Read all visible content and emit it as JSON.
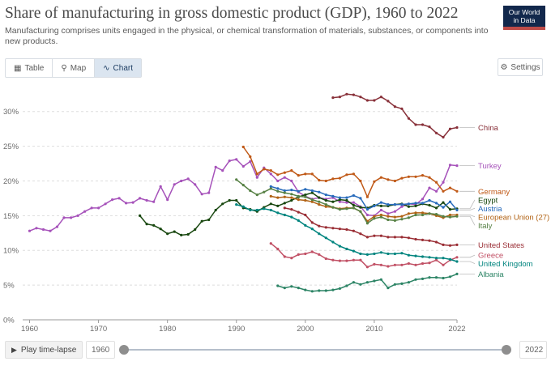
{
  "header": {
    "title": "Share of manufacturing in gross domestic product (GDP), 1960 to 2022",
    "subtitle": "Manufacturing comprises units engaged in the physical, or chemical transformation of materials, substances, or components into new products.",
    "logo_line1": "Our World",
    "logo_line2": "in Data"
  },
  "tabs": [
    {
      "label": "Table",
      "icon": "table-icon"
    },
    {
      "label": "Map",
      "icon": "map-icon"
    },
    {
      "label": "Chart",
      "icon": "chart-icon",
      "active": true
    }
  ],
  "settings_label": "Settings",
  "timeline": {
    "play_label": "Play time-lapse",
    "start_year": "1960",
    "end_year": "2022",
    "start_value": 1960,
    "end_value": 2022
  },
  "chart_data": {
    "type": "line",
    "title": "Share of manufacturing in gross domestic product (GDP), 1960 to 2022",
    "xlim": [
      1959,
      2022
    ],
    "ylim": [
      0,
      33
    ],
    "x_ticks": [
      1960,
      1970,
      1980,
      1990,
      2000,
      2010,
      2022
    ],
    "y_ticks": [
      0,
      5,
      10,
      15,
      20,
      25,
      30
    ],
    "y_tick_labels": [
      "0%",
      "5%",
      "10%",
      "15%",
      "20%",
      "25%",
      "30%"
    ],
    "grid": "horizontal dashed",
    "series": [
      {
        "name": "China",
        "color": "#883039",
        "x": [
          2004,
          2005,
          2006,
          2007,
          2008,
          2009,
          2010,
          2011,
          2012,
          2013,
          2014,
          2015,
          2016,
          2017,
          2018,
          2019,
          2020,
          2021,
          2022
        ],
        "y": [
          32.0,
          32.1,
          32.5,
          32.4,
          32.1,
          31.6,
          31.6,
          32.1,
          31.5,
          30.7,
          30.4,
          29.0,
          28.1,
          28.1,
          27.8,
          26.9,
          26.3,
          27.5,
          27.7
        ]
      },
      {
        "name": "Turkey",
        "color": "#a652ba",
        "x": [
          1960,
          1961,
          1962,
          1963,
          1964,
          1965,
          1966,
          1967,
          1968,
          1969,
          1970,
          1971,
          1972,
          1973,
          1974,
          1975,
          1976,
          1977,
          1978,
          1979,
          1980,
          1981,
          1982,
          1983,
          1984,
          1985,
          1986,
          1987,
          1988,
          1989,
          1990,
          1991,
          1992,
          1993,
          1994,
          1995,
          1996,
          1997,
          1998,
          1999,
          2000,
          2001,
          2002,
          2003,
          2004,
          2005,
          2006,
          2007,
          2008,
          2009,
          2010,
          2011,
          2012,
          2013,
          2014,
          2015,
          2016,
          2017,
          2018,
          2019,
          2020,
          2021,
          2022
        ],
        "y": [
          12.8,
          13.2,
          13.0,
          12.8,
          13.4,
          14.7,
          14.7,
          15.0,
          15.6,
          16.1,
          16.1,
          16.7,
          17.3,
          17.5,
          16.8,
          16.9,
          17.5,
          17.2,
          17.0,
          19.2,
          17.3,
          19.5,
          20.0,
          20.3,
          19.5,
          18.1,
          18.3,
          22.0,
          21.5,
          22.9,
          23.1,
          22.1,
          22.8,
          20.5,
          21.9,
          21.0,
          20.0,
          20.5,
          20.0,
          18.4,
          17.8,
          17.4,
          17.6,
          17.4,
          17.6,
          17.0,
          16.9,
          16.9,
          16.3,
          15.1,
          15.0,
          15.8,
          15.3,
          15.6,
          16.3,
          16.7,
          16.6,
          17.4,
          19.0,
          18.5,
          19.8,
          22.3,
          22.2
        ]
      },
      {
        "name": "Germany",
        "color": "#c05917",
        "x": [
          1991,
          1992,
          1993,
          1994,
          1995,
          1996,
          1997,
          1998,
          1999,
          2000,
          2001,
          2002,
          2003,
          2004,
          2005,
          2006,
          2007,
          2008,
          2009,
          2010,
          2011,
          2012,
          2013,
          2014,
          2015,
          2016,
          2017,
          2018,
          2019,
          2020,
          2021,
          2022
        ],
        "y": [
          24.9,
          23.5,
          21.0,
          21.7,
          21.5,
          20.9,
          21.2,
          21.5,
          20.8,
          21.0,
          21.0,
          20.1,
          20.0,
          20.3,
          20.4,
          20.9,
          21.0,
          20.0,
          17.7,
          19.9,
          20.5,
          20.2,
          20.0,
          20.4,
          20.6,
          20.6,
          20.8,
          20.5,
          19.8,
          18.5,
          19.0,
          18.5
        ]
      },
      {
        "name": "Egypt",
        "color": "#18470f",
        "x": [
          1976,
          1977,
          1978,
          1979,
          1980,
          1981,
          1982,
          1983,
          1984,
          1985,
          1986,
          1987,
          1988,
          1989,
          1990,
          1991,
          1992,
          1993,
          1994,
          1995,
          1996,
          1997,
          1998,
          1999,
          2000,
          2001,
          2002,
          2003,
          2004,
          2005,
          2006,
          2007,
          2008,
          2009,
          2010,
          2011,
          2012,
          2013,
          2014,
          2015,
          2016,
          2017,
          2018,
          2019,
          2020,
          2021,
          2022
        ],
        "y": [
          15.0,
          13.8,
          13.6,
          13.1,
          12.4,
          12.7,
          12.2,
          12.3,
          13.0,
          14.2,
          14.4,
          15.8,
          16.7,
          17.2,
          17.2,
          16.1,
          15.9,
          15.6,
          16.2,
          16.7,
          16.4,
          16.8,
          17.2,
          17.7,
          18.0,
          18.3,
          17.6,
          17.2,
          17.0,
          17.3,
          17.2,
          16.5,
          16.2,
          16.1,
          16.5,
          16.4,
          16.4,
          16.6,
          16.7,
          16.3,
          16.4,
          16.7,
          16.5,
          16.1,
          16.9,
          15.9,
          16.0
        ]
      },
      {
        "name": "Austria",
        "color": "#286bbb",
        "x": [
          1995,
          1996,
          1997,
          1998,
          1999,
          2000,
          2001,
          2002,
          2003,
          2004,
          2005,
          2006,
          2007,
          2008,
          2009,
          2010,
          2011,
          2012,
          2013,
          2014,
          2015,
          2016,
          2017,
          2018,
          2019,
          2020,
          2021,
          2022
        ],
        "y": [
          19.2,
          18.9,
          18.6,
          18.7,
          18.5,
          18.8,
          18.6,
          18.4,
          18.0,
          17.8,
          17.6,
          17.6,
          17.9,
          17.5,
          15.9,
          16.4,
          16.9,
          16.6,
          16.6,
          16.6,
          16.7,
          16.8,
          16.8,
          17.2,
          16.8,
          16.2,
          17.0,
          15.8
        ]
      },
      {
        "name": "European Union (27)",
        "color": "#b16214",
        "x": [
          1995,
          1996,
          1997,
          1998,
          1999,
          2000,
          2001,
          2002,
          2003,
          2004,
          2005,
          2006,
          2007,
          2008,
          2009,
          2010,
          2011,
          2012,
          2013,
          2014,
          2015,
          2016,
          2017,
          2018,
          2019,
          2020,
          2021,
          2022
        ],
        "y": [
          17.8,
          17.6,
          17.7,
          17.6,
          17.3,
          17.2,
          17.0,
          16.6,
          16.3,
          16.2,
          16.0,
          16.1,
          16.1,
          15.6,
          14.2,
          14.9,
          15.1,
          14.9,
          14.8,
          14.9,
          15.3,
          15.4,
          15.4,
          15.3,
          15.0,
          14.7,
          15.1,
          15.1
        ]
      },
      {
        "name": "Italy",
        "color": "#578145",
        "x": [
          1990,
          1991,
          1992,
          1993,
          1994,
          1995,
          1996,
          1997,
          1998,
          1999,
          2000,
          2001,
          2002,
          2003,
          2004,
          2005,
          2006,
          2007,
          2008,
          2009,
          2010,
          2011,
          2012,
          2013,
          2014,
          2015,
          2016,
          2017,
          2018,
          2019,
          2020,
          2021,
          2022
        ],
        "y": [
          20.2,
          19.4,
          18.6,
          18.0,
          18.4,
          18.9,
          18.5,
          18.3,
          18.1,
          17.8,
          17.7,
          17.3,
          17.0,
          16.6,
          16.2,
          15.9,
          16.0,
          16.1,
          15.6,
          13.9,
          14.6,
          14.8,
          14.4,
          14.3,
          14.5,
          14.7,
          15.1,
          15.1,
          15.3,
          15.2,
          14.9,
          14.8,
          14.9
        ]
      },
      {
        "name": "United States",
        "color": "#9a2e35",
        "x": [
          1997,
          1998,
          1999,
          2000,
          2001,
          2002,
          2003,
          2004,
          2005,
          2006,
          2007,
          2008,
          2009,
          2010,
          2011,
          2012,
          2013,
          2014,
          2015,
          2016,
          2017,
          2018,
          2019,
          2020,
          2021,
          2022
        ],
        "y": [
          16.1,
          15.9,
          15.5,
          15.1,
          14.0,
          13.5,
          13.3,
          13.2,
          13.1,
          13.0,
          12.8,
          12.4,
          11.9,
          12.1,
          12.1,
          11.9,
          11.9,
          11.9,
          11.8,
          11.6,
          11.5,
          11.4,
          11.2,
          10.8,
          10.7,
          10.8
        ]
      },
      {
        "name": "Greece",
        "color": "#c15065",
        "x": [
          1995,
          1996,
          1997,
          1998,
          1999,
          2000,
          2001,
          2002,
          2003,
          2004,
          2005,
          2006,
          2007,
          2008,
          2009,
          2010,
          2011,
          2012,
          2013,
          2014,
          2015,
          2016,
          2017,
          2018,
          2019,
          2020,
          2021,
          2022
        ],
        "y": [
          11.0,
          10.2,
          9.1,
          8.9,
          9.4,
          9.5,
          9.8,
          9.4,
          8.8,
          8.6,
          8.5,
          8.5,
          8.6,
          8.6,
          7.6,
          8.0,
          7.9,
          7.7,
          7.9,
          7.9,
          8.1,
          7.9,
          8.1,
          8.2,
          8.6,
          7.9,
          8.6,
          9.0
        ]
      },
      {
        "name": "United Kingdom",
        "color": "#00847e",
        "x": [
          1990,
          1991,
          1992,
          1993,
          1994,
          1995,
          1996,
          1997,
          1998,
          1999,
          2000,
          2001,
          2002,
          2003,
          2004,
          2005,
          2006,
          2007,
          2008,
          2009,
          2010,
          2011,
          2012,
          2013,
          2014,
          2015,
          2016,
          2017,
          2018,
          2019,
          2020,
          2021,
          2022
        ],
        "y": [
          16.6,
          16.3,
          15.8,
          15.8,
          16.0,
          15.8,
          15.4,
          15.1,
          14.8,
          14.3,
          13.6,
          13.1,
          12.4,
          11.8,
          11.2,
          10.6,
          10.2,
          9.9,
          9.5,
          9.4,
          9.5,
          9.7,
          9.5,
          9.5,
          9.6,
          9.3,
          9.2,
          9.1,
          9.0,
          8.9,
          8.9,
          8.7,
          8.4
        ]
      },
      {
        "name": "Albania",
        "color": "#2c8465",
        "x": [
          1996,
          1997,
          1998,
          1999,
          2000,
          2001,
          2002,
          2003,
          2004,
          2005,
          2006,
          2007,
          2008,
          2009,
          2010,
          2011,
          2012,
          2013,
          2014,
          2015,
          2016,
          2017,
          2018,
          2019,
          2020,
          2021,
          2022
        ],
        "y": [
          4.9,
          4.6,
          4.8,
          4.6,
          4.3,
          4.1,
          4.2,
          4.2,
          4.3,
          4.5,
          4.9,
          5.4,
          5.1,
          5.4,
          5.6,
          5.8,
          4.6,
          5.1,
          5.2,
          5.4,
          5.8,
          5.9,
          6.1,
          6.1,
          6.0,
          6.2,
          6.6
        ]
      }
    ]
  }
}
